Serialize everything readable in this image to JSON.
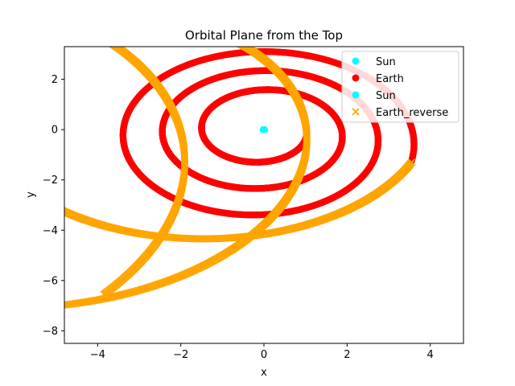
{
  "chart_data": {
    "type": "scatter",
    "title": "Orbital Plane from the Top",
    "xlabel": "x",
    "ylabel": "y",
    "xlim": [
      -4.8,
      4.8
    ],
    "ylim": [
      -8.5,
      3.3
    ],
    "xticks": [
      -4,
      -2,
      0,
      2,
      4
    ],
    "yticks": [
      -8,
      -6,
      -4,
      -2,
      0,
      2
    ],
    "grid": false,
    "legend_position": "top-right",
    "series": [
      {
        "name": "Sun",
        "marker": "circle",
        "color": "#00ffff",
        "points": [
          [
            0,
            0
          ],
          [
            0.02,
            0.0
          ],
          [
            -0.02,
            0.0
          ]
        ]
      },
      {
        "name": "Earth",
        "marker": "circle",
        "color": "#ff0000",
        "spiral": {
          "start": [
            1.0,
            0.1
          ],
          "end": [
            3.55,
            -1.25
          ],
          "turns": 3.05
        }
      },
      {
        "name": "Sun",
        "marker": "circle",
        "color": "#00ffff",
        "points": [
          [
            0,
            0
          ]
        ]
      },
      {
        "name": "Earth_reverse",
        "marker": "x",
        "color": "#ffa500",
        "spiral": {
          "start": [
            3.55,
            -1.3
          ],
          "end": [
            -3.85,
            -6.55
          ],
          "turns": 2.05
        }
      }
    ]
  }
}
